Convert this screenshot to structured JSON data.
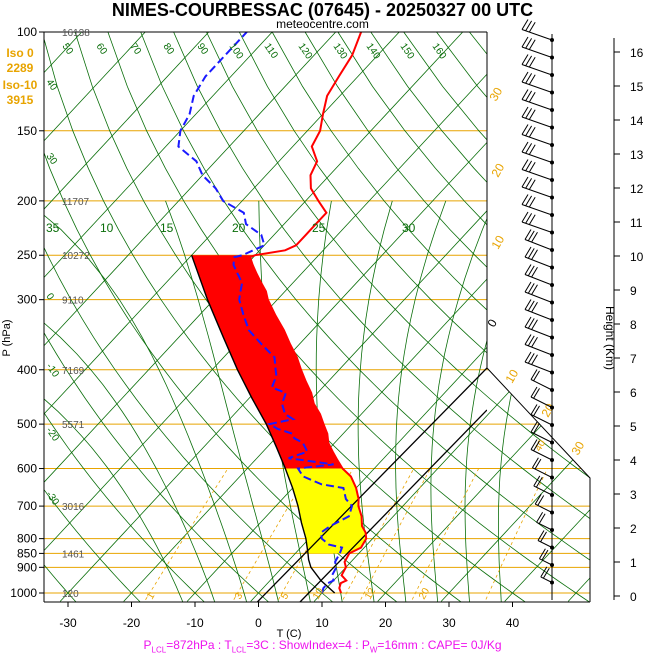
{
  "title": "NIMES-COURBESSAC (07645) - 20250327 00 UTC",
  "subtitle": "meteocentre.com",
  "footer": {
    "lcl_p": "872hPa",
    "lcl_t": "3C",
    "show_index": "4",
    "pw": "16mm",
    "cape": "0J/Kg"
  },
  "iso_labels": [
    "Iso 0",
    "2289",
    "Iso-10",
    "3915"
  ],
  "colors": {
    "isobar": "#e8a400",
    "isotherm": "#0a6e0a",
    "temperature": "#ff0000",
    "dewpoint": "#1a1aff",
    "parcel": "#000000",
    "mixing": "#e8a400",
    "cape_fill": "#ff0000",
    "low_fill": "#ffff00",
    "green_fill": "#00b000",
    "footer": "#ee11ee"
  },
  "chart_data": {
    "type": "line",
    "title": "NIMES-COURBESSAC (07645) - 20250327 00 UTC",
    "xlabel": "T (C)",
    "ylabel": "P (hPa)",
    "y2label": "Height (Km)",
    "xlim": [
      -35,
      47
    ],
    "ylim": [
      1035,
      100
    ],
    "y_scale": "log",
    "x_ticks": [
      -30,
      -20,
      -10,
      0,
      10,
      20,
      30,
      40
    ],
    "y_ticks": [
      100,
      150,
      200,
      250,
      300,
      400,
      500,
      600,
      700,
      800,
      850,
      900,
      1000
    ],
    "height_ticks_km": [
      0,
      1,
      2,
      3,
      4,
      5,
      6,
      7,
      8,
      9,
      10,
      11,
      12,
      13,
      14,
      15,
      16
    ],
    "geopotential_labels": [
      {
        "p": 100,
        "label": "16138"
      },
      {
        "p": 200,
        "label": "11707"
      },
      {
        "p": 250,
        "label": "10272"
      },
      {
        "p": 300,
        "label": "9110"
      },
      {
        "p": 400,
        "label": "7169"
      },
      {
        "p": 500,
        "label": "5571"
      },
      {
        "p": 700,
        "label": "3016"
      },
      {
        "p": 850,
        "label": "1461"
      },
      {
        "p": 1000,
        "label": "120"
      }
    ],
    "isotherm_labels": [
      "50",
      "60",
      "70",
      "80",
      "90",
      "100",
      "110",
      "120",
      "130",
      "140",
      "150",
      "160",
      "40",
      "30",
      "25",
      "20",
      "15",
      "10",
      "5",
      "0",
      "-10",
      "-20",
      "-30"
    ],
    "theta_labels": [
      "35",
      "10",
      "15",
      "20",
      "25",
      "30"
    ],
    "mixing_ratio_labels": [
      "1",
      "3",
      "5",
      "10",
      "12",
      "20",
      "40"
    ],
    "series": [
      {
        "name": "temperature",
        "points": [
          [
            1000,
            13
          ],
          [
            980,
            12
          ],
          [
            960,
            11.5
          ],
          [
            950,
            12
          ],
          [
            930,
            10.5
          ],
          [
            900,
            10
          ],
          [
            880,
            9
          ],
          [
            850,
            8.5
          ],
          [
            830,
            9.5
          ],
          [
            800,
            9
          ],
          [
            780,
            8
          ],
          [
            760,
            6.5
          ],
          [
            730,
            5
          ],
          [
            700,
            3
          ],
          [
            680,
            2
          ],
          [
            650,
            0
          ],
          [
            620,
            -2.5
          ],
          [
            600,
            -5
          ],
          [
            580,
            -7
          ],
          [
            560,
            -9
          ],
          [
            540,
            -11
          ],
          [
            520,
            -12.5
          ],
          [
            500,
            -14.5
          ],
          [
            480,
            -16.5
          ],
          [
            460,
            -19
          ],
          [
            440,
            -21
          ],
          [
            420,
            -23.5
          ],
          [
            400,
            -26
          ],
          [
            380,
            -28.5
          ],
          [
            360,
            -31.5
          ],
          [
            340,
            -34.5
          ],
          [
            320,
            -38
          ],
          [
            300,
            -41.5
          ],
          [
            290,
            -43
          ],
          [
            280,
            -45
          ],
          [
            270,
            -47
          ],
          [
            260,
            -49
          ],
          [
            252,
            -50.5
          ],
          [
            250,
            -50
          ],
          [
            245,
            -46
          ],
          [
            240,
            -45
          ],
          [
            230,
            -45
          ],
          [
            220,
            -45
          ],
          [
            210,
            -45
          ],
          [
            200,
            -48
          ],
          [
            190,
            -51
          ],
          [
            180,
            -53
          ],
          [
            170,
            -54
          ],
          [
            160,
            -57
          ],
          [
            150,
            -58
          ],
          [
            140,
            -60
          ],
          [
            130,
            -62
          ],
          [
            120,
            -63
          ],
          [
            110,
            -64
          ],
          [
            100,
            -66
          ]
        ]
      },
      {
        "name": "dewpoint",
        "points": [
          [
            1000,
            10
          ],
          [
            980,
            9.5
          ],
          [
            960,
            9.5
          ],
          [
            950,
            10
          ],
          [
            930,
            9
          ],
          [
            900,
            8.5
          ],
          [
            880,
            7.5
          ],
          [
            850,
            7
          ],
          [
            830,
            6.5
          ],
          [
            820,
            4
          ],
          [
            800,
            2
          ],
          [
            780,
            1
          ],
          [
            760,
            1.5
          ],
          [
            730,
            3
          ],
          [
            700,
            2
          ],
          [
            680,
            0
          ],
          [
            650,
            -2
          ],
          [
            640,
            -6
          ],
          [
            620,
            -10
          ],
          [
            610,
            -11
          ],
          [
            600,
            -12
          ],
          [
            590,
            -7
          ],
          [
            575,
            -15
          ],
          [
            560,
            -13
          ],
          [
            540,
            -15
          ],
          [
            530,
            -17
          ],
          [
            520,
            -18
          ],
          [
            510,
            -21
          ],
          [
            500,
            -23
          ],
          [
            490,
            -20
          ],
          [
            480,
            -22
          ],
          [
            460,
            -24
          ],
          [
            440,
            -25
          ],
          [
            430,
            -28
          ],
          [
            410,
            -29
          ],
          [
            400,
            -30
          ],
          [
            380,
            -32
          ],
          [
            360,
            -36
          ],
          [
            340,
            -40
          ],
          [
            320,
            -43
          ],
          [
            300,
            -46
          ],
          [
            290,
            -47
          ],
          [
            280,
            -48
          ],
          [
            270,
            -50
          ],
          [
            260,
            -52
          ],
          [
            252,
            -53
          ],
          [
            250,
            -52
          ],
          [
            240,
            -50
          ],
          [
            230,
            -52
          ],
          [
            220,
            -56
          ],
          [
            210,
            -58
          ],
          [
            200,
            -63
          ],
          [
            190,
            -66
          ],
          [
            180,
            -70
          ],
          [
            170,
            -73
          ],
          [
            160,
            -78
          ],
          [
            150,
            -80
          ],
          [
            140,
            -81
          ],
          [
            130,
            -83
          ],
          [
            120,
            -84
          ],
          [
            110,
            -84
          ],
          [
            100,
            -84
          ]
        ]
      },
      {
        "name": "parcel",
        "points": [
          [
            1000,
            12
          ],
          [
            950,
            8
          ],
          [
            900,
            4.5
          ],
          [
            872,
            3
          ],
          [
            850,
            2
          ],
          [
            800,
            -0.5
          ],
          [
            750,
            -3.5
          ],
          [
            700,
            -6.5
          ],
          [
            650,
            -10
          ],
          [
            600,
            -14
          ],
          [
            550,
            -18.5
          ],
          [
            500,
            -23.5
          ],
          [
            450,
            -29.5
          ],
          [
            400,
            -36
          ],
          [
            350,
            -43
          ],
          [
            300,
            -51
          ],
          [
            250,
            -60
          ]
        ]
      }
    ],
    "wind_barbs_present": true
  }
}
